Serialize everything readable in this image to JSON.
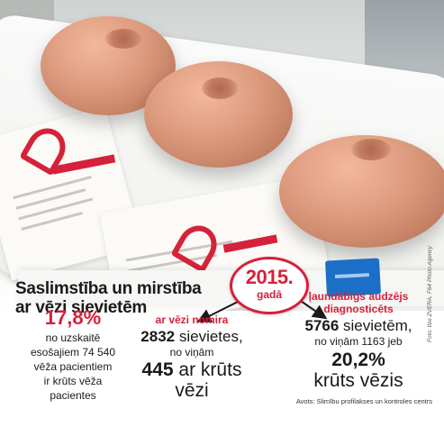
{
  "headline": {
    "line1": "Saslimstība un mirstība",
    "line2": "ar vēzi sievietēm"
  },
  "year_badge": {
    "year": "2015.",
    "sub": "gadā"
  },
  "stat_left": {
    "percent": "17,8%",
    "line1": "no uzskaitē",
    "line2": "esošajiem 74 540",
    "line3": "vēža pacientiem",
    "line4": "ir krūts vēža",
    "line5": "pacientes"
  },
  "stat_mid": {
    "label": "ar vēzi nomira",
    "number": "2832",
    "number_suffix": " sievietes,",
    "of_them": "no viņām",
    "big_number": "445",
    "big_suffix": " ar krūts",
    "big_word": "vēzi"
  },
  "stat_right": {
    "label_line1": "ļaundabīgs audzējs",
    "label_line2": "diagnosticēts",
    "number": "5766",
    "number_suffix": " sievietēm,",
    "of_them": "no viņām 1163 jeb",
    "percent": "20,2%",
    "big_word": "krūts vēzis"
  },
  "source": "Avots: Slimību profilakses un kontroles centrs",
  "photo_credit": "Foto: Ilze ZVERA, F64 Photo Agency",
  "colors": {
    "accent": "#d6213a",
    "text": "#1a1a1a"
  }
}
